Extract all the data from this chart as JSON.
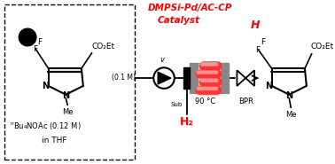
{
  "bg_color": "#ffffff",
  "red_color": "#ff0000",
  "black_color": "#000000",
  "dark_gray": "#555555",
  "med_gray": "#888888",
  "reactor_bg": "#ffe8e8",
  "bead_color": "#ff3333",
  "bead_hi": "#ff9999",
  "catalyst_line1": "DMPSi-Pd/AC-CP",
  "catalyst_line2": "Catalyst",
  "temp_label": "90 °C",
  "bpr_label": "BPR",
  "h2_label": "H₂",
  "vsub_label": "v",
  "vsub_sub": "Sub"
}
